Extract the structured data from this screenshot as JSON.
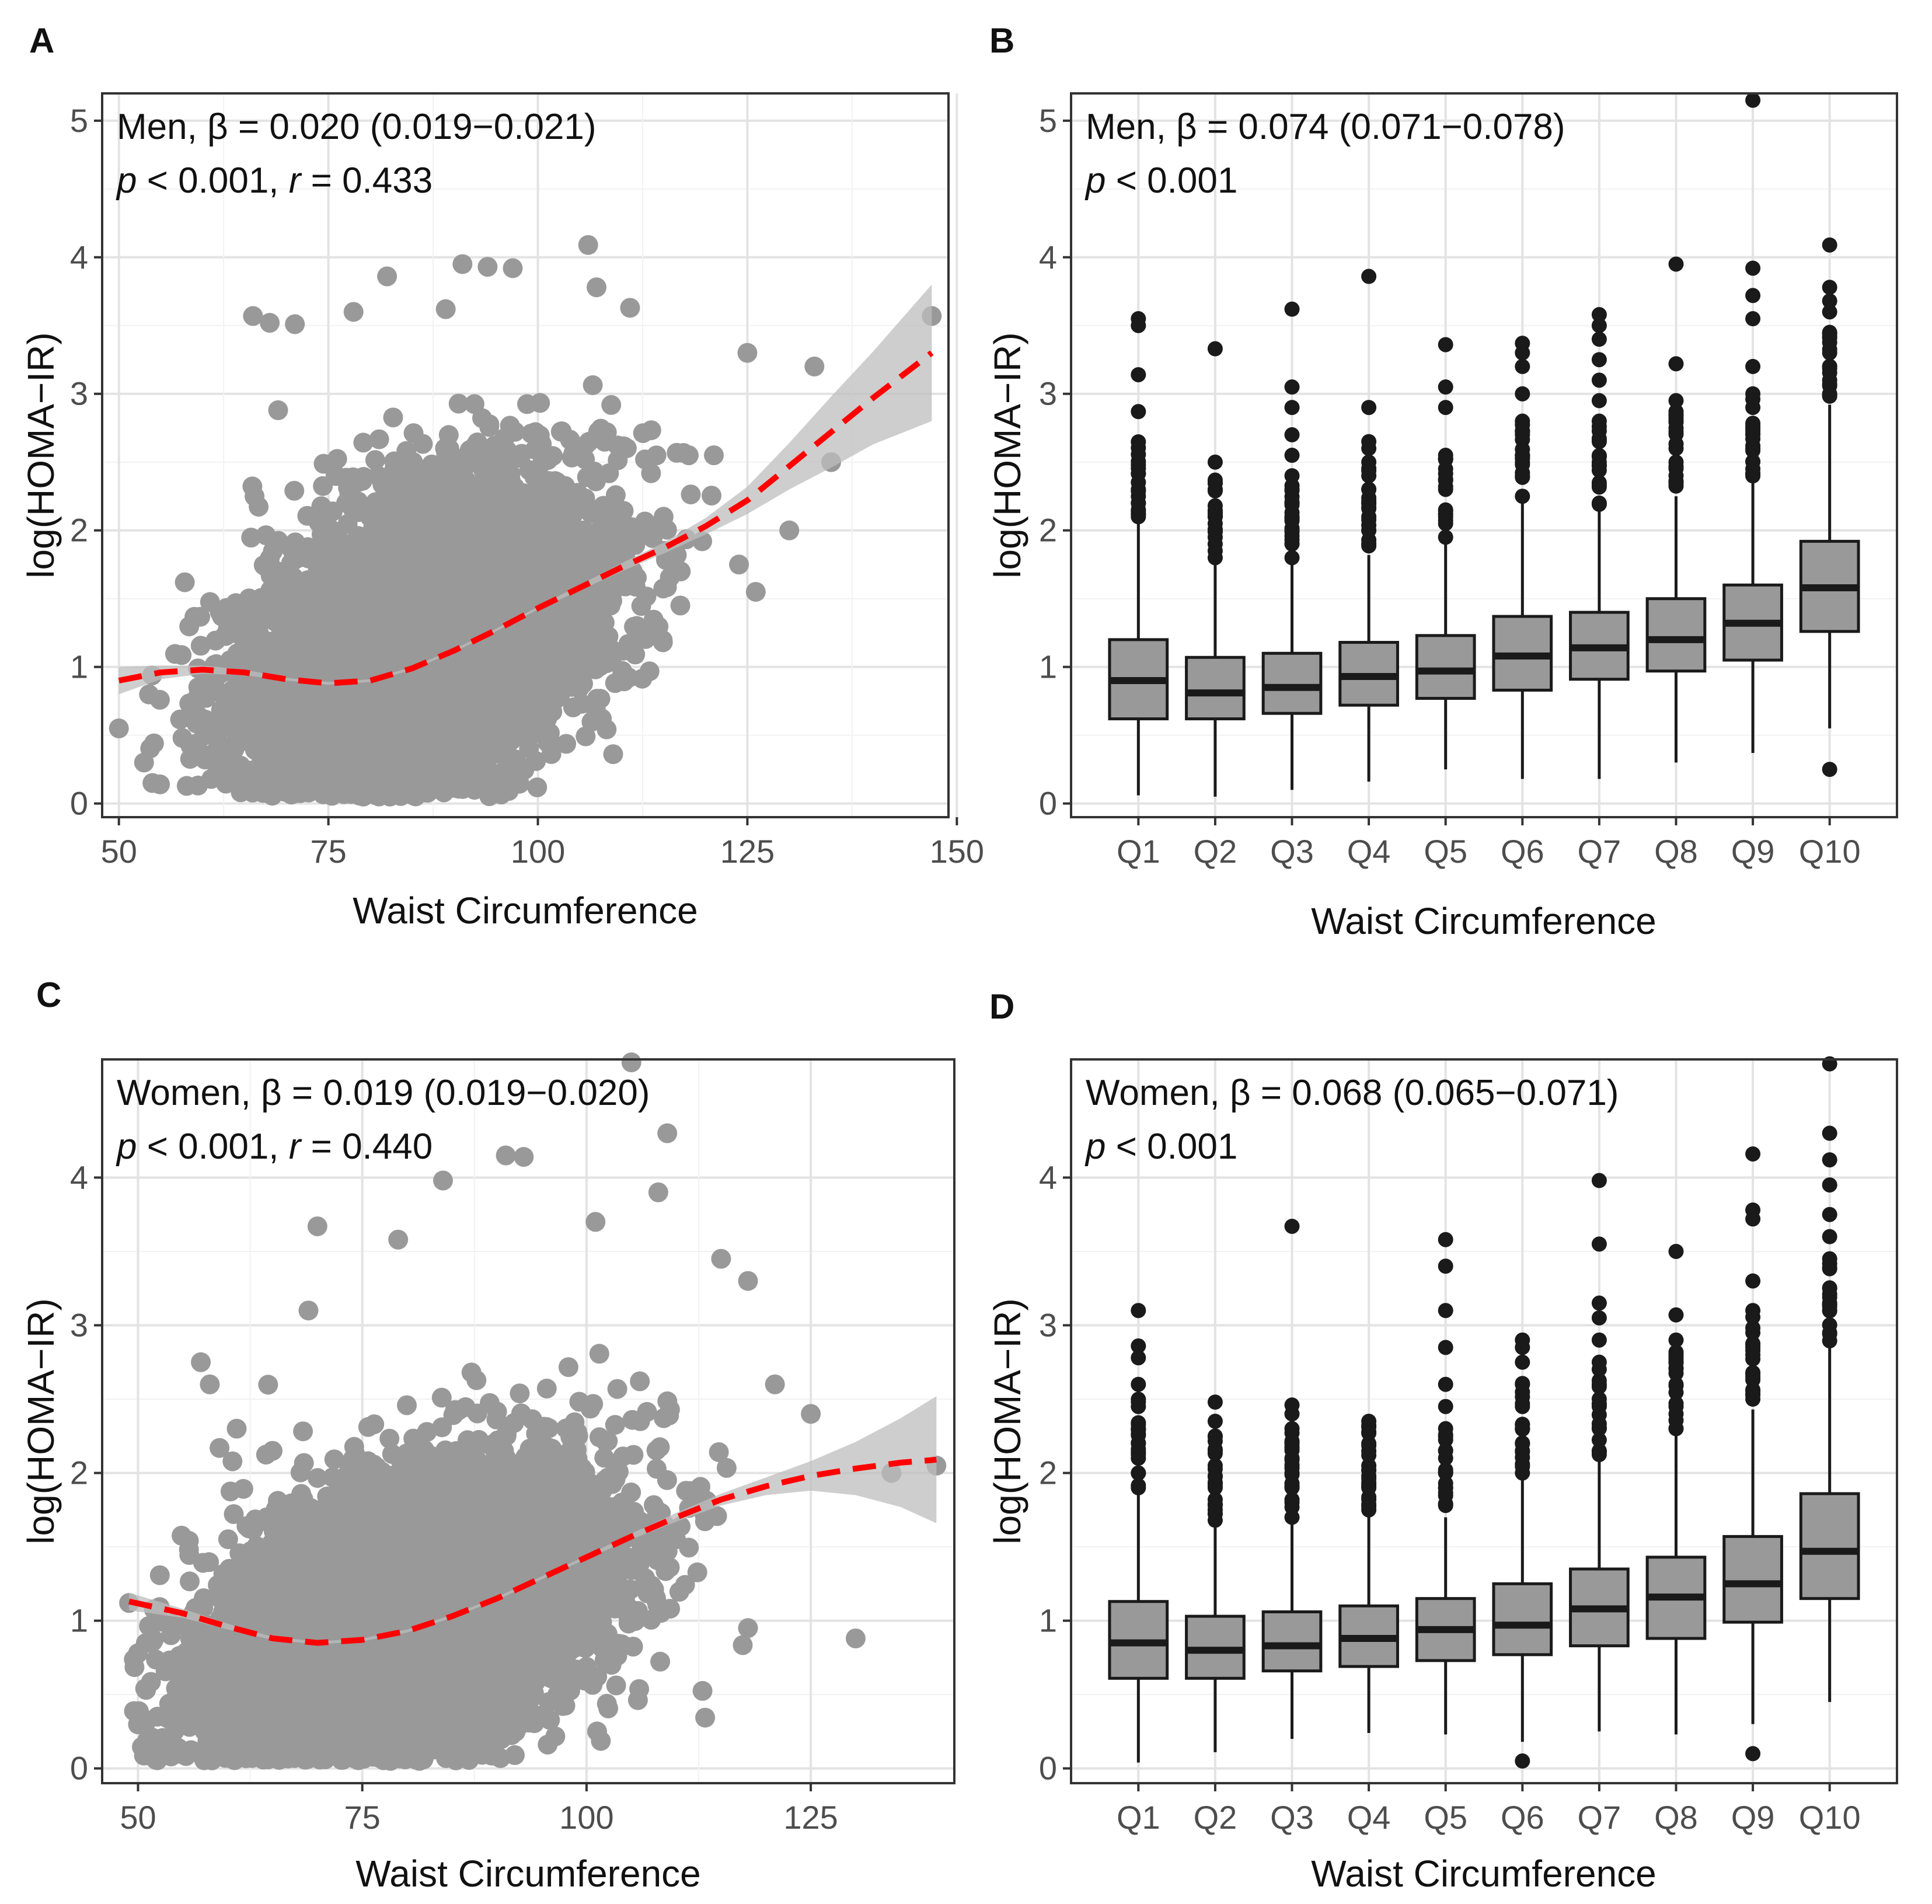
{
  "figure": {
    "panels": [
      "A",
      "B",
      "C",
      "D"
    ]
  },
  "colors": {
    "point": "#999999",
    "smooth": "#ff0000",
    "band": "#bdbdbd",
    "box_fill": "#999999",
    "box_line": "#1a1a1a",
    "outlier": "#1a1a1a"
  },
  "chart_data": [
    {
      "panel": "A",
      "type": "scatter",
      "xlabel": "Waist Circumference",
      "ylabel": "log(HOMA−IR)",
      "xlim": [
        48,
        149
      ],
      "ylim": [
        -0.1,
        5.2
      ],
      "xticks": [
        50,
        75,
        100,
        125,
        150
      ],
      "yticks": [
        0,
        1,
        2,
        3,
        4,
        5
      ],
      "annotation": {
        "line1": "Men, β = 0.020 (0.019−0.021)",
        "p_label": "p",
        "p_rest": " < 0.001, ",
        "r_label": "r",
        "r_rest": " = 0.433"
      },
      "cloud": {
        "x_mean": 86,
        "x_sd": 10,
        "y_base": 1.2,
        "slope": 0.02,
        "y_sd": 0.52,
        "n": 6500,
        "x_min": 50,
        "x_max": 147
      },
      "outliers": [
        {
          "x": 50,
          "y": 0.55
        },
        {
          "x": 54,
          "y": 0.15
        },
        {
          "x": 53,
          "y": 0.3
        },
        {
          "x": 66,
          "y": 3.57
        },
        {
          "x": 68,
          "y": 3.52
        },
        {
          "x": 71,
          "y": 3.51
        },
        {
          "x": 69,
          "y": 2.88
        },
        {
          "x": 78,
          "y": 3.6
        },
        {
          "x": 82,
          "y": 3.86
        },
        {
          "x": 89,
          "y": 3.62
        },
        {
          "x": 91,
          "y": 3.95
        },
        {
          "x": 94,
          "y": 3.93
        },
        {
          "x": 97,
          "y": 3.92
        },
        {
          "x": 106,
          "y": 4.09
        },
        {
          "x": 107,
          "y": 3.78
        },
        {
          "x": 111,
          "y": 3.63
        },
        {
          "x": 121,
          "y": 2.55
        },
        {
          "x": 125,
          "y": 3.3
        },
        {
          "x": 133,
          "y": 3.2
        },
        {
          "x": 130,
          "y": 2.0
        },
        {
          "x": 126,
          "y": 1.55
        },
        {
          "x": 124,
          "y": 1.75
        },
        {
          "x": 135,
          "y": 2.5
        },
        {
          "x": 147,
          "y": 3.57
        },
        {
          "x": 118,
          "y": 2.55
        },
        {
          "x": 115,
          "y": 2.1
        },
        {
          "x": 117,
          "y": 1.45
        }
      ],
      "smooth": {
        "x": [
          50,
          55,
          60,
          65,
          70,
          75,
          80,
          85,
          90,
          95,
          100,
          105,
          110,
          115,
          120,
          125,
          130,
          135,
          140,
          147
        ],
        "y": [
          0.9,
          0.96,
          0.98,
          0.96,
          0.91,
          0.88,
          0.9,
          0.99,
          1.12,
          1.27,
          1.43,
          1.58,
          1.73,
          1.87,
          2.03,
          2.22,
          2.47,
          2.72,
          2.97,
          3.3
        ],
        "se": [
          0.1,
          0.05,
          0.03,
          0.02,
          0.01,
          0.01,
          0.01,
          0.01,
          0.01,
          0.01,
          0.01,
          0.02,
          0.03,
          0.04,
          0.06,
          0.1,
          0.17,
          0.26,
          0.34,
          0.5
        ]
      }
    },
    {
      "panel": "B",
      "type": "boxplot",
      "xlabel": "Waist Circumference",
      "ylabel": "log(HOMA−IR)",
      "ylim": [
        -0.1,
        5.2
      ],
      "yticks": [
        0,
        1,
        2,
        3,
        4,
        5
      ],
      "categories": [
        "Q1",
        "Q2",
        "Q3",
        "Q4",
        "Q5",
        "Q6",
        "Q7",
        "Q8",
        "Q9",
        "Q10"
      ],
      "annotation": {
        "line1": "Men, β = 0.074 (0.071−0.078)",
        "p_label": "p",
        "p_rest": " < 0.001"
      },
      "boxes": [
        {
          "q1": 0.62,
          "median": 0.9,
          "q3": 1.2,
          "lo": 0.06,
          "hi": 2.05,
          "outliers": [
            2.1,
            2.15,
            2.2,
            2.25,
            2.3,
            2.87,
            3.14,
            3.5,
            3.55
          ]
        },
        {
          "q1": 0.62,
          "median": 0.81,
          "q3": 1.07,
          "lo": 0.05,
          "hi": 1.75,
          "outliers": [
            1.8,
            1.85,
            1.9,
            1.95,
            2.0,
            2.05,
            2.1,
            2.18,
            2.3,
            2.5,
            3.33
          ]
        },
        {
          "q1": 0.66,
          "median": 0.85,
          "q3": 1.1,
          "lo": 0.1,
          "hi": 1.75,
          "outliers": [
            1.8,
            1.9,
            2.0,
            2.1,
            2.2,
            2.3,
            2.4,
            2.55,
            2.7,
            2.9,
            3.05,
            3.62
          ]
        },
        {
          "q1": 0.72,
          "median": 0.93,
          "q3": 1.18,
          "lo": 0.16,
          "hi": 1.82,
          "outliers": [
            1.9,
            2.0,
            2.1,
            2.2,
            2.3,
            2.4,
            2.5,
            2.6,
            2.65,
            2.9,
            3.86
          ]
        },
        {
          "q1": 0.77,
          "median": 0.97,
          "q3": 1.23,
          "lo": 0.25,
          "hi": 1.92,
          "outliers": [
            1.95,
            2.05,
            2.15,
            2.3,
            2.45,
            2.55,
            2.9,
            3.05,
            3.36
          ]
        },
        {
          "q1": 0.83,
          "median": 1.08,
          "q3": 1.37,
          "lo": 0.18,
          "hi": 2.2,
          "outliers": [
            2.25,
            2.4,
            2.55,
            2.7,
            2.8,
            3.0,
            3.2,
            3.3,
            3.37
          ]
        },
        {
          "q1": 0.91,
          "median": 1.14,
          "q3": 1.4,
          "lo": 0.18,
          "hi": 2.15,
          "outliers": [
            2.2,
            2.35,
            2.5,
            2.65,
            2.8,
            2.95,
            3.1,
            3.25,
            3.4,
            3.5,
            3.58
          ]
        },
        {
          "q1": 0.97,
          "median": 1.2,
          "q3": 1.5,
          "lo": 0.3,
          "hi": 2.25,
          "outliers": [
            2.35,
            2.5,
            2.6,
            2.75,
            2.85,
            2.95,
            3.22,
            3.95
          ]
        },
        {
          "q1": 1.05,
          "median": 1.32,
          "q3": 1.6,
          "lo": 0.37,
          "hi": 2.35,
          "outliers": [
            2.45,
            2.6,
            2.75,
            2.9,
            3.0,
            3.2,
            3.55,
            3.72,
            3.92,
            5.15
          ]
        },
        {
          "q1": 1.26,
          "median": 1.58,
          "q3": 1.92,
          "lo": 0.55,
          "hi": 2.92,
          "outliers": [
            0.25,
            3.0,
            3.1,
            3.2,
            3.3,
            3.45,
            3.6,
            3.68,
            3.78,
            4.09
          ]
        }
      ]
    },
    {
      "panel": "C",
      "type": "scatter",
      "xlabel": "Waist Circumference",
      "ylabel": "log(HOMA−IR)",
      "xlim": [
        46,
        141
      ],
      "ylim": [
        -0.1,
        4.8
      ],
      "xticks": [
        50,
        75,
        100,
        125
      ],
      "yticks": [
        0,
        1,
        2,
        3,
        4
      ],
      "annotation": {
        "line1": "Women, β = 0.019 (0.019−0.020)",
        "p_label": "p",
        "p_rest": " < 0.001, ",
        "r_label": "r",
        "r_rest": " = 0.440"
      },
      "cloud": {
        "x_mean": 80,
        "x_sd": 11,
        "y_base": 1.05,
        "slope": 0.019,
        "y_sd": 0.45,
        "n": 7000,
        "x_min": 49,
        "x_max": 139
      },
      "outliers": [
        {
          "x": 49,
          "y": 1.12
        },
        {
          "x": 50,
          "y": 0.78
        },
        {
          "x": 57,
          "y": 2.75
        },
        {
          "x": 58,
          "y": 2.6
        },
        {
          "x": 61,
          "y": 2.3
        },
        {
          "x": 65,
          "y": 2.15
        },
        {
          "x": 69,
          "y": 3.1
        },
        {
          "x": 70,
          "y": 3.67
        },
        {
          "x": 79,
          "y": 3.58
        },
        {
          "x": 84,
          "y": 3.98
        },
        {
          "x": 91,
          "y": 4.15
        },
        {
          "x": 93,
          "y": 4.14
        },
        {
          "x": 101,
          "y": 3.7
        },
        {
          "x": 105,
          "y": 4.78
        },
        {
          "x": 109,
          "y": 4.3
        },
        {
          "x": 108,
          "y": 3.9
        },
        {
          "x": 115,
          "y": 3.45
        },
        {
          "x": 118,
          "y": 3.3
        },
        {
          "x": 121,
          "y": 2.6
        },
        {
          "x": 125,
          "y": 2.4
        },
        {
          "x": 130,
          "y": 0.88
        },
        {
          "x": 118,
          "y": 0.95
        },
        {
          "x": 139,
          "y": 2.05
        },
        {
          "x": 134,
          "y": 2.0
        },
        {
          "x": 92,
          "y": 0.09
        },
        {
          "x": 64,
          "y": 0.06
        }
      ],
      "smooth": {
        "x": [
          49,
          55,
          60,
          65,
          70,
          75,
          80,
          85,
          90,
          95,
          100,
          105,
          110,
          115,
          120,
          125,
          130,
          135,
          139
        ],
        "y": [
          1.13,
          1.05,
          0.96,
          0.88,
          0.85,
          0.87,
          0.93,
          1.03,
          1.15,
          1.29,
          1.43,
          1.57,
          1.7,
          1.82,
          1.91,
          1.98,
          2.03,
          2.07,
          2.09
        ],
        "se": [
          0.06,
          0.03,
          0.02,
          0.01,
          0.01,
          0.01,
          0.01,
          0.01,
          0.01,
          0.01,
          0.01,
          0.02,
          0.03,
          0.04,
          0.06,
          0.1,
          0.18,
          0.3,
          0.43
        ]
      }
    },
    {
      "panel": "D",
      "type": "boxplot",
      "xlabel": "Waist Circumference",
      "ylabel": "log(HOMA−IR)",
      "ylim": [
        -0.1,
        4.8
      ],
      "yticks": [
        0,
        1,
        2,
        3,
        4
      ],
      "categories": [
        "Q1",
        "Q2",
        "Q3",
        "Q4",
        "Q5",
        "Q6",
        "Q7",
        "Q8",
        "Q9",
        "Q10"
      ],
      "annotation": {
        "line1": "Women, β = 0.068 (0.065−0.071)",
        "p_label": "p",
        "p_rest": " < 0.001"
      },
      "boxes": [
        {
          "q1": 0.61,
          "median": 0.85,
          "q3": 1.13,
          "lo": 0.04,
          "hi": 1.87,
          "outliers": [
            1.9,
            2.0,
            2.1,
            2.2,
            2.3,
            2.45,
            2.6,
            2.78,
            2.86,
            3.1
          ]
        },
        {
          "q1": 0.61,
          "median": 0.8,
          "q3": 1.03,
          "lo": 0.11,
          "hi": 1.63,
          "outliers": [
            1.68,
            1.75,
            1.82,
            1.9,
            1.98,
            2.05,
            2.15,
            2.25,
            2.35,
            2.48
          ]
        },
        {
          "q1": 0.66,
          "median": 0.83,
          "q3": 1.06,
          "lo": 0.2,
          "hi": 1.65,
          "outliers": [
            1.7,
            1.8,
            1.9,
            2.0,
            2.1,
            2.2,
            2.3,
            2.4,
            2.46,
            3.67
          ]
        },
        {
          "q1": 0.69,
          "median": 0.88,
          "q3": 1.1,
          "lo": 0.24,
          "hi": 1.7,
          "outliers": [
            1.75,
            1.82,
            1.9,
            1.98,
            2.05,
            2.12,
            2.2,
            2.27,
            2.35
          ]
        },
        {
          "q1": 0.73,
          "median": 0.94,
          "q3": 1.15,
          "lo": 0.23,
          "hi": 1.7,
          "outliers": [
            1.78,
            1.9,
            2.0,
            2.15,
            2.3,
            2.45,
            2.6,
            2.85,
            3.1,
            3.4,
            3.58
          ]
        },
        {
          "q1": 0.77,
          "median": 0.97,
          "q3": 1.25,
          "lo": 0.18,
          "hi": 1.97,
          "outliers": [
            0.05,
            2.0,
            2.15,
            2.3,
            2.45,
            2.6,
            2.75,
            2.85,
            2.9
          ]
        },
        {
          "q1": 0.83,
          "median": 1.08,
          "q3": 1.35,
          "lo": 0.25,
          "hi": 2.08,
          "outliers": [
            2.15,
            2.3,
            2.45,
            2.6,
            2.75,
            2.9,
            3.05,
            3.15,
            3.55,
            3.98
          ]
        },
        {
          "q1": 0.88,
          "median": 1.16,
          "q3": 1.43,
          "lo": 0.23,
          "hi": 2.25,
          "outliers": [
            2.3,
            2.45,
            2.6,
            2.75,
            2.9,
            3.07,
            3.5
          ]
        },
        {
          "q1": 0.99,
          "median": 1.25,
          "q3": 1.57,
          "lo": 0.3,
          "hi": 2.43,
          "outliers": [
            0.1,
            2.5,
            2.65,
            2.8,
            2.95,
            3.1,
            3.3,
            3.72,
            3.78,
            4.16
          ]
        },
        {
          "q1": 1.15,
          "median": 1.47,
          "q3": 1.86,
          "lo": 0.45,
          "hi": 2.85,
          "outliers": [
            2.95,
            3.1,
            3.25,
            3.45,
            3.6,
            3.75,
            3.95,
            4.12,
            4.3,
            4.77
          ]
        }
      ]
    }
  ]
}
